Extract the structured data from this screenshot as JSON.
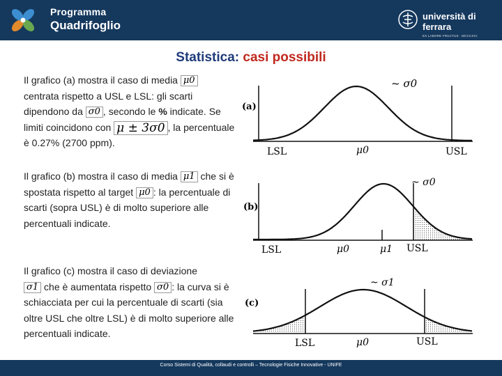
{
  "header": {
    "program_line1": "Programma",
    "program_line2": "Quadrifoglio",
    "university_name": "università di ferrara",
    "university_sub": "EX LABORE FRUCTUS · MCCCXCI"
  },
  "title": {
    "main": "Statistica:",
    "accent": "casi possibili"
  },
  "symbols": {
    "mu0": "μ0",
    "mu1": "μ1",
    "sigma0": "σ0",
    "sigma1": "σ1",
    "mu_pm_3sigma0": "μ ± 3σ0"
  },
  "paragraph_a": {
    "t1": "Il grafico (a) mostra il caso di media ",
    "t2": "centrata rispetto a USL e LSL: gli scarti dipendono da ",
    "t3": ", secondo le ",
    "percent_word": "%",
    "t4": " indicate. Se limiti coincidono con ",
    "t5": ", la percentuale è  0.27% (2700 ppm)."
  },
  "paragraph_b": {
    "t1": "Il grafico (b) mostra il caso di media ",
    "t2": " che si è spostata rispetto al target ",
    "t3": ": la percentuale di scarti (sopra USL) è di molto superiore alle percentuali indicate."
  },
  "paragraph_c": {
    "t1": "Il grafico (c) mostra il caso di deviazione ",
    "t2": " che è aumentata rispetto ",
    "t3": ": la curva si è schiacciata per cui  la percentuale di scarti (sia oltre USL che oltre LSL) è di molto superiore alle percentuali indicate."
  },
  "figures": {
    "a": {
      "tag": "(a)",
      "lsl": "LSL",
      "usl": "USL",
      "center": "μ0",
      "spread": "~ σ0"
    },
    "b": {
      "tag": "(b)",
      "lsl": "LSL",
      "usl": "USL",
      "target": "μ0",
      "mean": "μ1",
      "spread": "~ σ0"
    },
    "c": {
      "tag": "(c)",
      "lsl": "LSL",
      "usl": "USL",
      "center": "μ0",
      "spread": "~ σ1"
    }
  },
  "footer": {
    "text": "Corso Sistemi di Qualità, collaudi e controlli – Tecnologie Fisiche Innovative - UNIFE"
  },
  "colors": {
    "header_bg": "#15385d",
    "title": "#1f3b7a",
    "accent": "#c0281e"
  }
}
